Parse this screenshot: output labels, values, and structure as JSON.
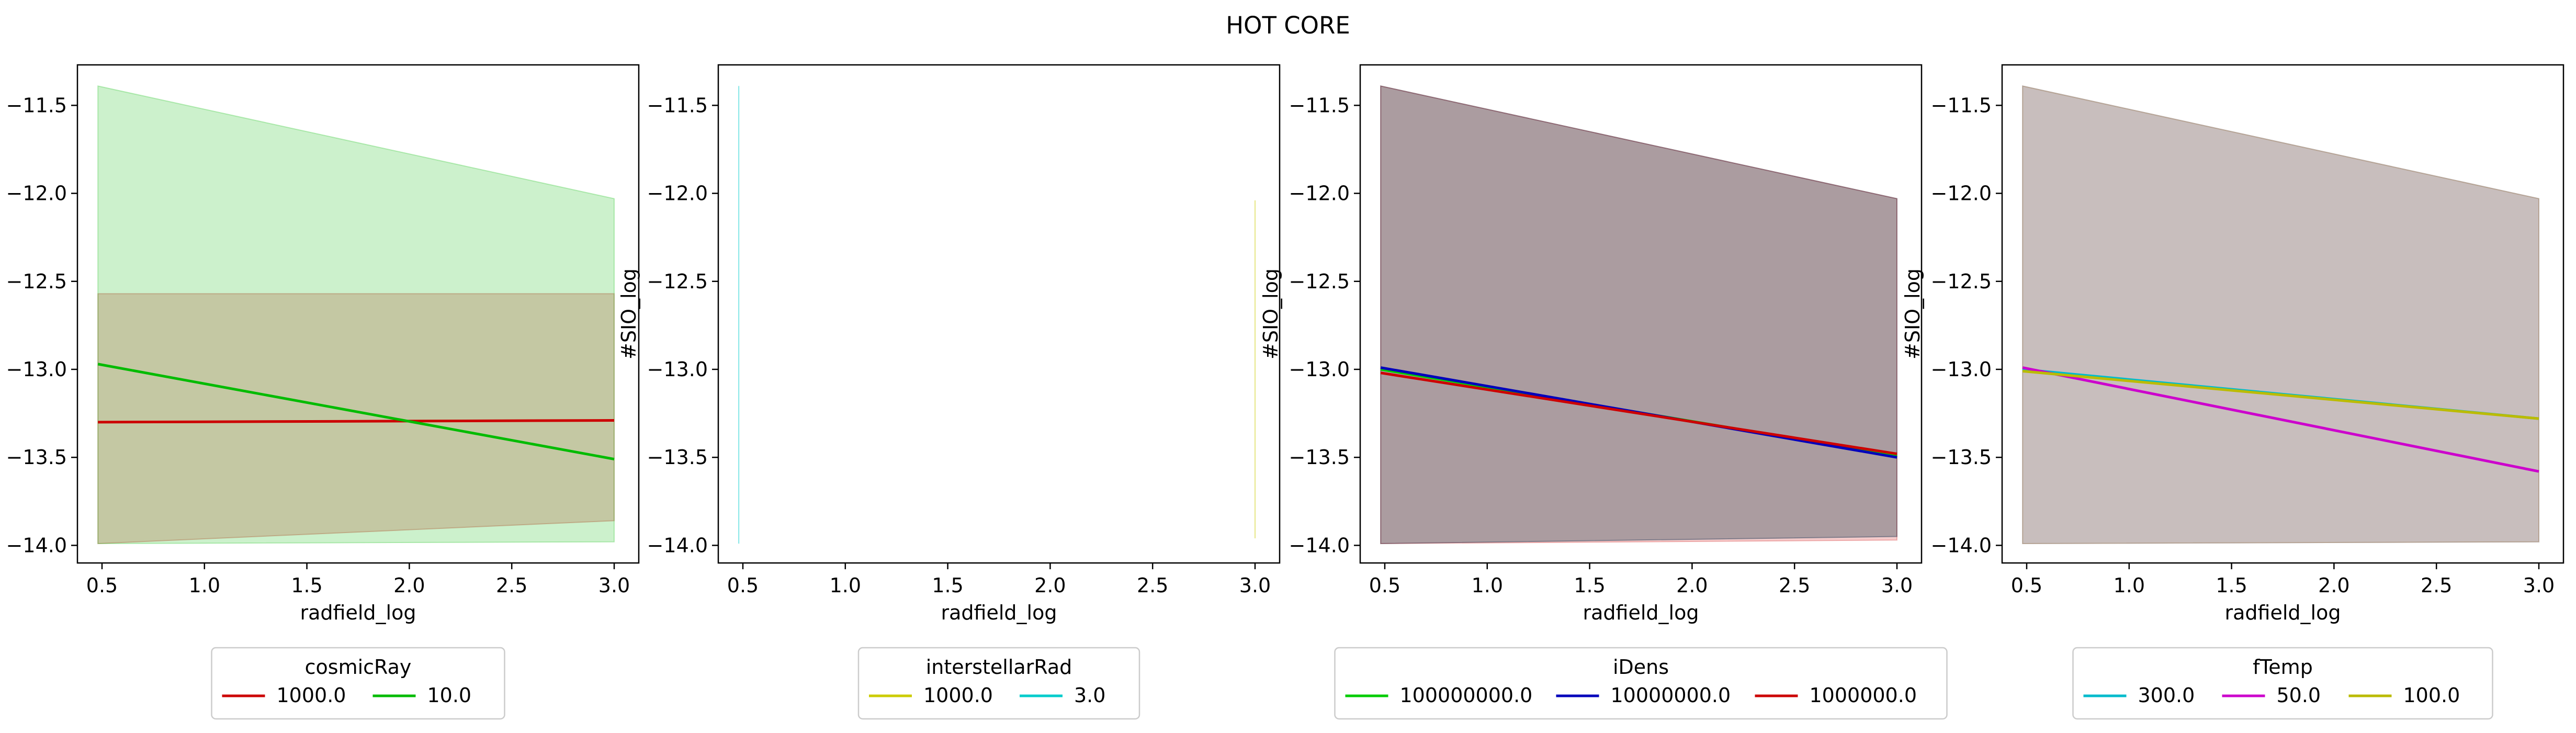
{
  "figure": {
    "title": "HOT CORE"
  },
  "chart_data": [
    {
      "type": "line",
      "xlabel": "radfield_log",
      "ylabel": "#SIO_log",
      "xlim": [
        0.38,
        3.12
      ],
      "ylim": [
        -14.1,
        -11.27
      ],
      "xticks": [
        0.5,
        1.0,
        1.5,
        2.0,
        2.5,
        3.0
      ],
      "yticks": [
        -14.0,
        -13.5,
        -13.0,
        -12.5,
        -12.0,
        -11.5
      ],
      "grid": false,
      "legend": {
        "title": "cosmicRay",
        "placement": "below",
        "columns": 2
      },
      "series": [
        {
          "name": "1000.0",
          "color": "#cc0000",
          "x": [
            0.48,
            3.0
          ],
          "y": [
            -13.3,
            -13.29
          ],
          "band_low": [
            -13.99,
            -13.86
          ],
          "band_high": [
            -12.57,
            -12.57
          ]
        },
        {
          "name": "10.0",
          "color": "#00bb00",
          "x": [
            0.48,
            3.0
          ],
          "y": [
            -12.97,
            -13.51
          ],
          "band_low": [
            -13.99,
            -13.98
          ],
          "band_high": [
            -11.39,
            -12.03
          ]
        }
      ]
    },
    {
      "type": "line",
      "xlabel": "radfield_log",
      "ylabel": "#SIO_log",
      "xlim": [
        0.38,
        3.12
      ],
      "ylim": [
        -14.1,
        -11.27
      ],
      "xticks": [
        0.5,
        1.0,
        1.5,
        2.0,
        2.5,
        3.0
      ],
      "yticks": [
        -14.0,
        -13.5,
        -13.0,
        -12.5,
        -12.0,
        -11.5
      ],
      "grid": false,
      "legend": {
        "title": "interstellarRad",
        "placement": "below",
        "columns": 2
      },
      "series": [
        {
          "name": "1000.0",
          "color": "#cccc00",
          "x": [
            3.0,
            3.0
          ],
          "y": [
            -12.04,
            -13.96
          ],
          "band_low": [
            -13.96,
            -13.96
          ],
          "band_high": [
            -12.04,
            -12.04
          ]
        },
        {
          "name": "3.0",
          "color": "#00cccc",
          "x": [
            0.48,
            0.48
          ],
          "y": [
            -11.39,
            -13.99
          ],
          "band_low": [
            -13.99,
            -13.99
          ],
          "band_high": [
            -11.39,
            -11.39
          ]
        }
      ]
    },
    {
      "type": "line",
      "xlabel": "radfield_log",
      "ylabel": "#SIO_log",
      "xlim": [
        0.38,
        3.12
      ],
      "ylim": [
        -14.1,
        -11.27
      ],
      "xticks": [
        0.5,
        1.0,
        1.5,
        2.0,
        2.5,
        3.0
      ],
      "yticks": [
        -14.0,
        -13.5,
        -13.0,
        -12.5,
        -12.0,
        -11.5
      ],
      "grid": false,
      "legend": {
        "title": "iDens",
        "placement": "below",
        "columns": 3
      },
      "series": [
        {
          "name": "100000000.0",
          "color": "#00cc00",
          "x": [
            0.48,
            3.0
          ],
          "y": [
            -13.0,
            -13.49
          ],
          "band_low": [
            -13.99,
            -13.95
          ],
          "band_high": [
            -11.39,
            -12.03
          ]
        },
        {
          "name": "10000000.0",
          "color": "#0000bb",
          "x": [
            0.48,
            3.0
          ],
          "y": [
            -12.99,
            -13.5
          ],
          "band_low": [
            -13.99,
            -13.95
          ],
          "band_high": [
            -11.39,
            -12.03
          ]
        },
        {
          "name": "1000000.0",
          "color": "#cc0000",
          "x": [
            0.48,
            3.0
          ],
          "y": [
            -13.02,
            -13.48
          ],
          "band_low": [
            -13.99,
            -13.97
          ],
          "band_high": [
            -11.39,
            -12.03
          ]
        }
      ]
    },
    {
      "type": "line",
      "xlabel": "radfield_log",
      "ylabel": "#SIO_log",
      "xlim": [
        0.38,
        3.12
      ],
      "ylim": [
        -14.1,
        -11.27
      ],
      "xticks": [
        0.5,
        1.0,
        1.5,
        2.0,
        2.5,
        3.0
      ],
      "yticks": [
        -14.0,
        -13.5,
        -13.0,
        -12.5,
        -12.0,
        -11.5
      ],
      "grid": false,
      "legend": {
        "title": "fTemp",
        "placement": "below",
        "columns": 3
      },
      "series": [
        {
          "name": "300.0",
          "color": "#00bbcc",
          "x": [
            0.48,
            3.0
          ],
          "y": [
            -13.0,
            -13.28
          ],
          "band_low": [
            -13.99,
            -13.98
          ],
          "band_high": [
            -11.39,
            -12.03
          ]
        },
        {
          "name": "50.0",
          "color": "#cc00cc",
          "x": [
            0.48,
            3.0
          ],
          "y": [
            -12.99,
            -13.58
          ],
          "band_low": [
            -13.99,
            -13.98
          ],
          "band_high": [
            -11.39,
            -12.03
          ]
        },
        {
          "name": "100.0",
          "color": "#bbbb00",
          "x": [
            0.48,
            3.0
          ],
          "y": [
            -13.01,
            -13.28
          ],
          "band_low": [
            -13.99,
            -13.98
          ],
          "band_high": [
            -11.39,
            -12.03
          ]
        }
      ]
    }
  ]
}
